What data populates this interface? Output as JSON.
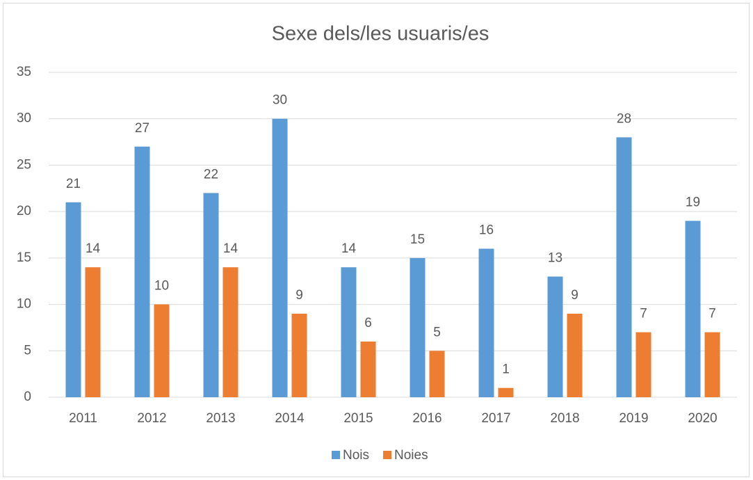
{
  "chart_data": {
    "type": "bar",
    "title": "Sexe dels/les usuaris/es",
    "categories": [
      "2011",
      "2012",
      "2013",
      "2014",
      "2015",
      "2016",
      "2017",
      "2018",
      "2019",
      "2020"
    ],
    "series": [
      {
        "name": "Nois",
        "color": "#5b9bd5",
        "values": [
          21,
          27,
          22,
          30,
          14,
          15,
          16,
          13,
          28,
          19
        ]
      },
      {
        "name": "Noies",
        "color": "#ed7d31",
        "values": [
          14,
          10,
          14,
          9,
          6,
          5,
          1,
          9,
          7,
          7
        ]
      }
    ],
    "ylim": [
      0,
      35
    ],
    "yticks": [
      0,
      5,
      10,
      15,
      20,
      25,
      30,
      35
    ],
    "grid": true,
    "legend": "bottom"
  }
}
